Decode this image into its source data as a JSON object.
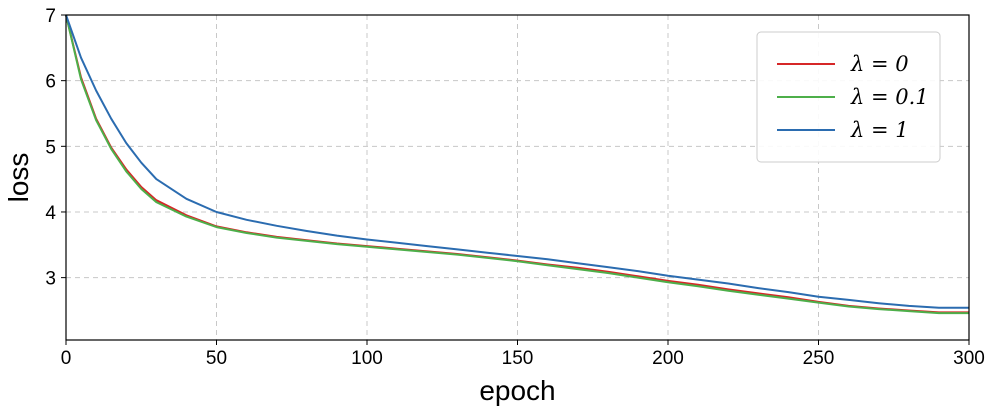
{
  "chart_data": {
    "type": "line",
    "xlabel": "epoch",
    "ylabel": "loss",
    "xlim": [
      0,
      300
    ],
    "ylim": [
      2.05,
      7.0
    ],
    "xticks": [
      0,
      50,
      100,
      150,
      200,
      250,
      300
    ],
    "yticks": [
      3,
      4,
      5,
      6,
      7
    ],
    "grid": true,
    "legend_position": "top-right",
    "x": [
      0,
      5,
      10,
      15,
      20,
      25,
      30,
      40,
      50,
      60,
      70,
      80,
      90,
      100,
      110,
      120,
      130,
      140,
      150,
      160,
      170,
      180,
      190,
      200,
      210,
      220,
      230,
      240,
      250,
      260,
      270,
      280,
      290,
      300
    ],
    "series": [
      {
        "name": "λ = 0",
        "color": "#d62728",
        "values": [
          7.0,
          6.05,
          5.42,
          4.98,
          4.65,
          4.38,
          4.18,
          3.95,
          3.78,
          3.69,
          3.62,
          3.57,
          3.52,
          3.48,
          3.44,
          3.4,
          3.36,
          3.31,
          3.26,
          3.2,
          3.15,
          3.09,
          3.02,
          2.95,
          2.89,
          2.82,
          2.76,
          2.7,
          2.63,
          2.57,
          2.53,
          2.5,
          2.47,
          2.47
        ]
      },
      {
        "name": "λ = 0.1",
        "color": "#4daf4a",
        "values": [
          7.0,
          6.02,
          5.4,
          4.96,
          4.62,
          4.35,
          4.15,
          3.93,
          3.77,
          3.68,
          3.61,
          3.56,
          3.51,
          3.47,
          3.43,
          3.39,
          3.35,
          3.3,
          3.25,
          3.19,
          3.13,
          3.07,
          3.0,
          2.93,
          2.87,
          2.8,
          2.74,
          2.68,
          2.62,
          2.56,
          2.52,
          2.49,
          2.46,
          2.46
        ]
      },
      {
        "name": "λ = 1",
        "color": "#2b6cb0",
        "values": [
          7.0,
          6.35,
          5.85,
          5.42,
          5.05,
          4.75,
          4.5,
          4.2,
          4.0,
          3.88,
          3.79,
          3.71,
          3.64,
          3.58,
          3.53,
          3.48,
          3.43,
          3.38,
          3.33,
          3.28,
          3.22,
          3.16,
          3.1,
          3.03,
          2.97,
          2.91,
          2.84,
          2.78,
          2.71,
          2.66,
          2.61,
          2.57,
          2.54,
          2.54
        ]
      }
    ]
  }
}
